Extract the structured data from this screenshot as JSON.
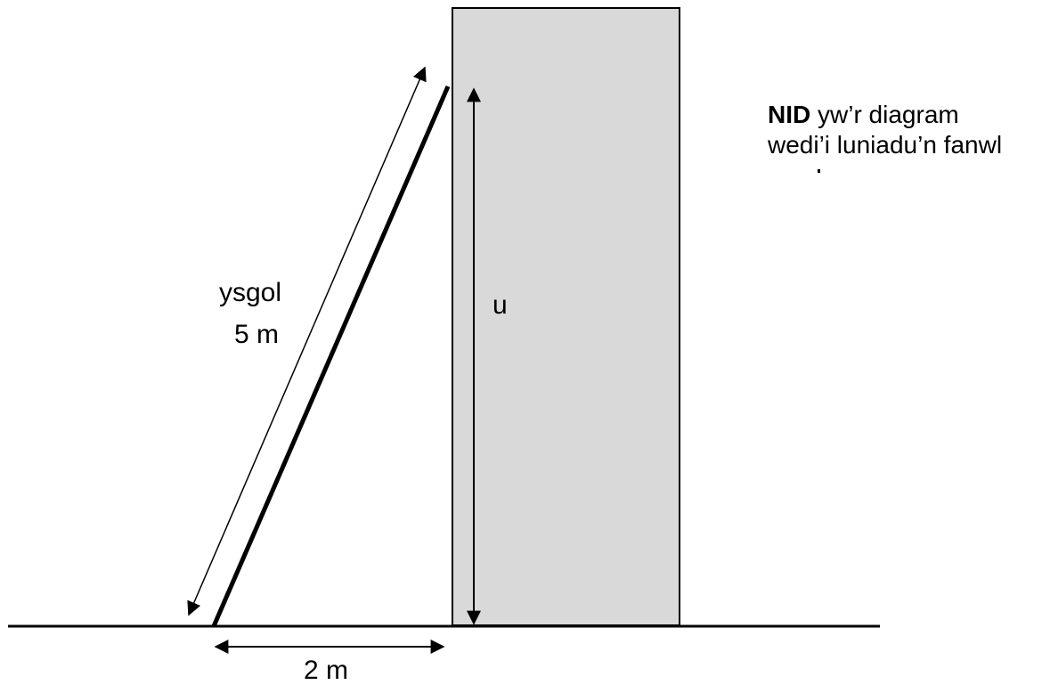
{
  "diagram": {
    "ladder_word": "ysgol",
    "ladder_length": "5 m",
    "height_label": "u",
    "base_distance": "2 m"
  },
  "note": {
    "bold": "NID",
    "line1_rest": " yw’r diagram",
    "line2": "wedi’i luniadu’n fanwl"
  },
  "colors": {
    "wall_fill": "#d9d9d9",
    "stroke": "#000000"
  }
}
